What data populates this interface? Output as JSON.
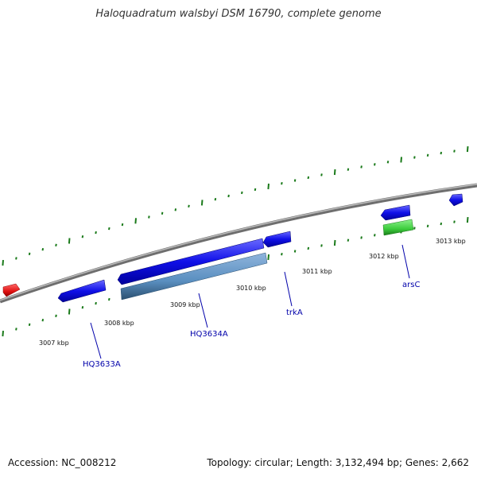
{
  "title": "Haloquadratum walsbyi DSM 16790, complete genome",
  "footer": {
    "accession": "Accession: NC_008212",
    "summary": "Topology: circular; Length: 3,132,494 bp; Genes: 2,662"
  },
  "colors": {
    "backbone": "#8a8a8a",
    "tick": "#1a7a1a",
    "gene_blue": "#1010e8",
    "gene_steel": "#5a8fc0",
    "gene_green": "#3ccc3c",
    "gene_red": "#e01010",
    "label": "#0000aa"
  },
  "scale_ticks": [
    "3007 kbp",
    "3008 kbp",
    "3009 kbp",
    "3010 kbp",
    "3011 kbp",
    "3012 kbp",
    "3013 kbp"
  ],
  "gene_labels": [
    "HQ3633A",
    "HQ3634A",
    "trkA",
    "arsC"
  ]
}
